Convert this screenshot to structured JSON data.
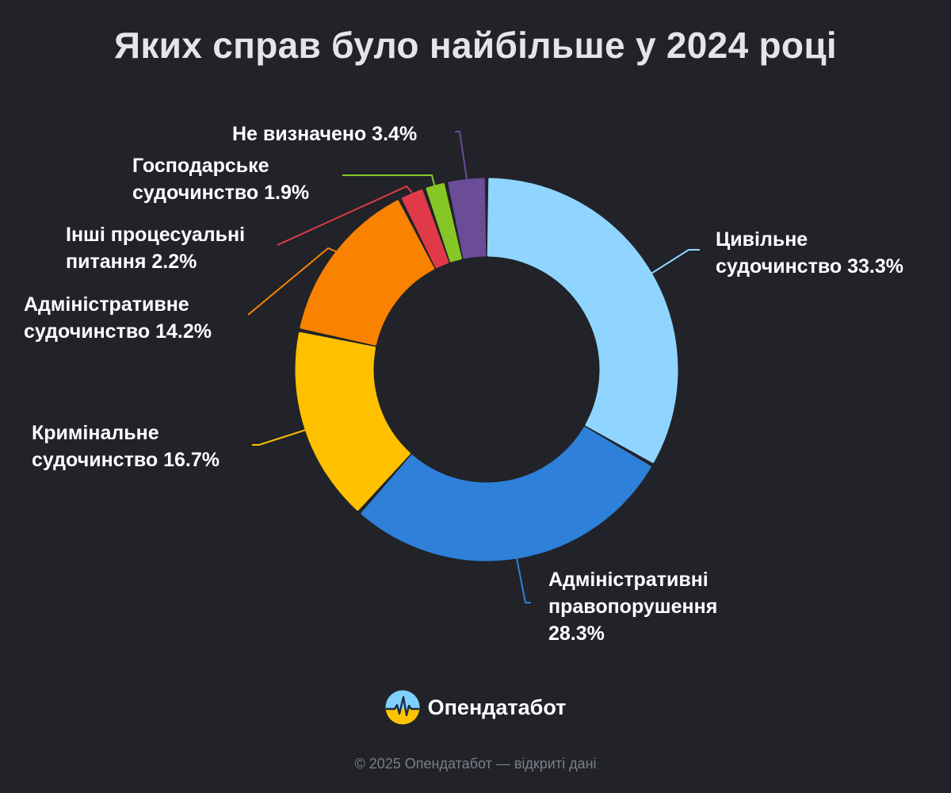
{
  "title": "Яких справ було найбільше у 2024 році",
  "brand": {
    "name": "Опендатабот",
    "logo_icon": "opendatabot-logo-icon"
  },
  "footer": "© 2025 Опендатабот — відкриті дані",
  "chart_data": {
    "type": "pie",
    "variant": "donut",
    "title": "Яких справ було найбільше у 2024 році",
    "unit": "%",
    "slices": [
      {
        "label": "Цивільне судочинство",
        "value": 33.3,
        "color": "#8fd5ff",
        "label_lines": [
          "Цивільне",
          "судочинство 33.3%"
        ]
      },
      {
        "label": "Адміністративні правопорушення",
        "value": 28.3,
        "color": "#2e80d9",
        "label_lines": [
          "Адміністративні",
          "правопорушення",
          "28.3%"
        ]
      },
      {
        "label": "Кримінальне судочинство",
        "value": 16.7,
        "color": "#ffc000",
        "label_lines": [
          "Кримінальне",
          "судочинство 16.7%"
        ]
      },
      {
        "label": "Адміністративне судочинство",
        "value": 14.2,
        "color": "#f98200",
        "label_lines": [
          "Адміністративне",
          "судочинство 14.2%"
        ]
      },
      {
        "label": "Інші процесуальні питання",
        "value": 2.2,
        "color": "#e03a48",
        "label_lines": [
          "Інші процесуальні",
          "питання 2.2%"
        ]
      },
      {
        "label": "Господарське судочинство",
        "value": 1.9,
        "color": "#86c725",
        "label_lines": [
          "Господарське",
          "судочинство 1.9%"
        ]
      },
      {
        "label": "Не визначено",
        "value": 3.4,
        "color": "#6a4c97",
        "label_lines": [
          "Не визначено 3.4%"
        ]
      }
    ]
  }
}
